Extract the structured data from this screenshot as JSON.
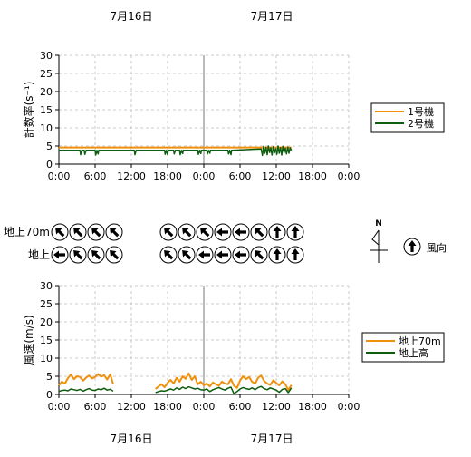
{
  "date_labels": [
    "7月16日",
    "7月17日"
  ],
  "legend_count": {
    "items": [
      {
        "label": "1号機",
        "color": "#f0900c"
      },
      {
        "label": "2号機",
        "color": "#0e5c0e"
      }
    ]
  },
  "legend_wind": {
    "items": [
      {
        "label": "地上70m",
        "color": "#f0900c"
      },
      {
        "label": "地上高",
        "color": "#0e5c0e"
      }
    ]
  },
  "direction": {
    "row_labels": [
      "地上70m",
      "地上"
    ],
    "north_label": "N",
    "legend_label": "風向",
    "legend_arrow_deg": 0,
    "day1_rows": [
      [
        315,
        315,
        315,
        315
      ],
      [
        270,
        315,
        315,
        315
      ]
    ],
    "day2_rows": [
      [
        315,
        315,
        315,
        270,
        270,
        315,
        0,
        0
      ],
      [
        315,
        315,
        270,
        270,
        270,
        315,
        0,
        0
      ]
    ]
  },
  "chart_data": [
    {
      "type": "line",
      "ylabel": "計数率(s⁻¹)",
      "ylim": [
        0,
        30
      ],
      "yticks": [
        0,
        5,
        10,
        15,
        20,
        25,
        30
      ],
      "xlim": [
        0,
        48
      ],
      "xtick_labels": [
        "0:00",
        "6:00",
        "12:00",
        "18:00",
        "0:00",
        "6:00",
        "12:00",
        "18:00",
        "0:00"
      ],
      "day_divider_hour": 24,
      "grid": true,
      "legend_position": "right",
      "series": [
        {
          "name": "1号機",
          "color": "#f0900c",
          "x": [
            0,
            38.5
          ],
          "y": [
            4.6,
            4.6
          ]
        },
        {
          "name": "2号機",
          "color": "#0e5c0e",
          "x": [
            0,
            3.5,
            3.6,
            3.8,
            4.2,
            4.3,
            4.5,
            6,
            6.1,
            6.3,
            6.5,
            6.6,
            12.5,
            12.6,
            12.8,
            17.5,
            17.6,
            17.8,
            18,
            18.1,
            19,
            19.1,
            19.3,
            20,
            20.1,
            20.3,
            20.5,
            20.6,
            23,
            23.1,
            23.3,
            23.5,
            23.6,
            24.5,
            24.6,
            24.8,
            25,
            25.1,
            26.8,
            28,
            28.1,
            28.3,
            28.5,
            28.6,
            33.5,
            33.7,
            33.9,
            34.1,
            34.3,
            34.5,
            34.7,
            34.9,
            35.1,
            35.3,
            35.5,
            35.7,
            35.9,
            36.1,
            36.3,
            36.5,
            36.7,
            36.9,
            37.1,
            37.3,
            37.5,
            37.7,
            37.9,
            38.1,
            38.3,
            38.5
          ],
          "y": [
            3.8,
            3.8,
            2.6,
            3.8,
            3.8,
            2.7,
            3.8,
            3.8,
            2.5,
            3.8,
            2.8,
            3.8,
            3.8,
            2.6,
            3.8,
            3.8,
            2.7,
            3.8,
            2.6,
            3.8,
            3.8,
            2.8,
            3.8,
            3.8,
            2.6,
            3.8,
            2.9,
            3.8,
            3.8,
            2.7,
            3.8,
            2.9,
            3.8,
            3.8,
            2.8,
            3.8,
            3.0,
            3.8,
            3.8,
            3.8,
            2.8,
            3.8,
            2.6,
            3.8,
            4.2,
            2.4,
            4.9,
            3.0,
            4.6,
            2.6,
            5.0,
            3.2,
            4.5,
            2.5,
            4.8,
            3.1,
            4.3,
            2.7,
            5.0,
            3.0,
            4.6,
            2.5,
            4.9,
            3.2,
            4.4,
            2.8,
            4.7,
            3.0,
            4.5,
            3.8
          ]
        }
      ]
    },
    {
      "type": "line",
      "ylabel": "風速(m/s)",
      "ylim": [
        0,
        30
      ],
      "yticks": [
        0,
        5,
        10,
        15,
        20,
        25,
        30
      ],
      "xlim": [
        0,
        48
      ],
      "xtick_labels": [
        "0:00",
        "6:00",
        "12:00",
        "18:00",
        "0:00",
        "6:00",
        "12:00",
        "18:00",
        "0:00"
      ],
      "day_divider_hour": 24,
      "grid": true,
      "legend_position": "right",
      "series": [
        {
          "name": "地上70m",
          "color": "#f0900c",
          "segments": [
            {
              "x": [
                0,
                0.5,
                1,
                1.5,
                2,
                2.5,
                3,
                3.5,
                4,
                4.5,
                5,
                5.5,
                6,
                6.5,
                7,
                7.5,
                8,
                8.5,
                9
              ],
              "y": [
                2.5,
                3.5,
                3,
                4.5,
                5.5,
                4.2,
                5,
                4.8,
                3.8,
                4.6,
                5.2,
                4.4,
                4.8,
                5.6,
                4.9,
                5.3,
                4.1,
                5.5,
                2.8
              ]
            },
            {
              "x": [
                16,
                16.5,
                17,
                17.5,
                18,
                18.5,
                19,
                19.5,
                20,
                20.5,
                21,
                21.5,
                22,
                22.5,
                23,
                23.5,
                24,
                24.5,
                25,
                25.5,
                26,
                26.5,
                27,
                27.5,
                28,
                28.5,
                29,
                29.5,
                30,
                30.5,
                31,
                31.5,
                32,
                32.5,
                33,
                33.5,
                34,
                34.5,
                35,
                35.5,
                36,
                36.5,
                37,
                37.5,
                38,
                38.5
              ],
              "y": [
                1.5,
                2.2,
                2.8,
                2,
                3.2,
                4,
                3,
                4.6,
                3.5,
                5,
                4.3,
                5.8,
                4,
                5,
                2.8,
                3.5,
                2.5,
                3,
                2.2,
                3.3,
                2.8,
                2.4,
                3.5,
                3,
                2.8,
                4.2,
                2.4,
                1.8,
                3.8,
                5,
                4.2,
                4.8,
                3.5,
                3,
                4.6,
                5.2,
                3.7,
                3,
                2.6,
                3.9,
                3.2,
                2.5,
                3.6,
                2.8,
                1.2,
                2.6
              ]
            }
          ]
        },
        {
          "name": "地上高",
          "color": "#0e5c0e",
          "segments": [
            {
              "x": [
                0,
                0.5,
                1,
                1.5,
                2,
                2.5,
                3,
                3.5,
                4,
                4.5,
                5,
                5.5,
                6,
                6.5,
                7,
                7.5,
                8,
                8.5,
                9
              ],
              "y": [
                0.8,
                1.1,
                1.2,
                1,
                1.5,
                1.3,
                1.1,
                1.4,
                0.9,
                1.3,
                1.6,
                1.2,
                1.1,
                1.5,
                1.3,
                1.7,
                1.2,
                1.4,
                0.9
              ]
            },
            {
              "x": [
                16,
                16.5,
                17,
                17.5,
                18,
                18.5,
                19,
                19.5,
                20,
                20.5,
                21,
                21.5,
                22,
                22.5,
                23,
                23.5,
                24,
                24.5,
                25,
                25.5,
                26,
                26.5,
                27,
                27.5,
                28,
                28.5,
                29,
                29.5,
                30,
                30.5,
                31,
                31.5,
                32,
                32.5,
                33,
                33.5,
                34,
                34.5,
                35,
                35.5,
                36,
                36.5,
                37,
                37.5,
                38,
                38.5
              ],
              "y": [
                0.5,
                0.8,
                1,
                0.9,
                1.2,
                1.5,
                1.2,
                1.8,
                1.4,
                2,
                1.6,
                2.1,
                1.8,
                1.5,
                1.7,
                1.3,
                1.2,
                1.5,
                0.8,
                1.3,
                1.6,
                1.9,
                1.5,
                1.2,
                1.7,
                2,
                0.2,
                0.8,
                1.5,
                1.9,
                1.6,
                1.4,
                1.8,
                1.3,
                1.9,
                2.2,
                1.6,
                1.3,
                1.8,
                1.5,
                1.2,
                0.6,
                1.4,
                1.6,
                0.5,
                1.8
              ]
            }
          ]
        }
      ]
    }
  ]
}
